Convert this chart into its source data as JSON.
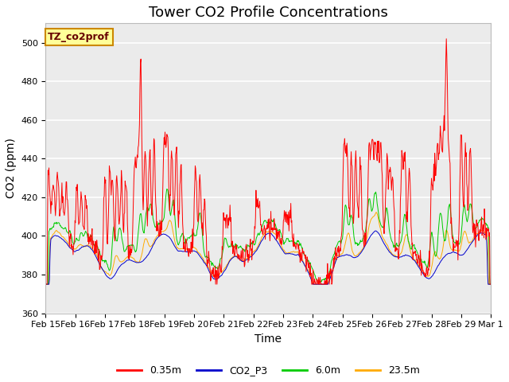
{
  "title": "Tower CO2 Profile Concentrations",
  "xlabel": "Time",
  "ylabel": "CO2 (ppm)",
  "ylim": [
    360,
    510
  ],
  "yticks": [
    360,
    380,
    400,
    420,
    440,
    460,
    480,
    500
  ],
  "label_box_text": "TZ_co2prof",
  "series_colors": {
    "0.35m": "#ff0000",
    "CO2_P3": "#0000cc",
    "6.0m": "#00cc00",
    "23.5m": "#ffaa00"
  },
  "legend_labels": [
    "0.35m",
    "CO2_P3",
    "6.0m",
    "23.5m"
  ],
  "x_tick_labels": [
    "Feb 15",
    "Feb 16",
    "Feb 17",
    "Feb 18",
    "Feb 19",
    "Feb 20",
    "Feb 21",
    "Feb 22",
    "Feb 23",
    "Feb 24",
    "Feb 25",
    "Feb 26",
    "Feb 27",
    "Feb 28",
    "Feb 29",
    "Mar 1"
  ],
  "background_color": "#ffffff",
  "plot_bg_color": "#ebebeb",
  "grid_color": "#ffffff",
  "title_fontsize": 13,
  "axis_label_fontsize": 10,
  "tick_fontsize": 8,
  "n_points": 960
}
